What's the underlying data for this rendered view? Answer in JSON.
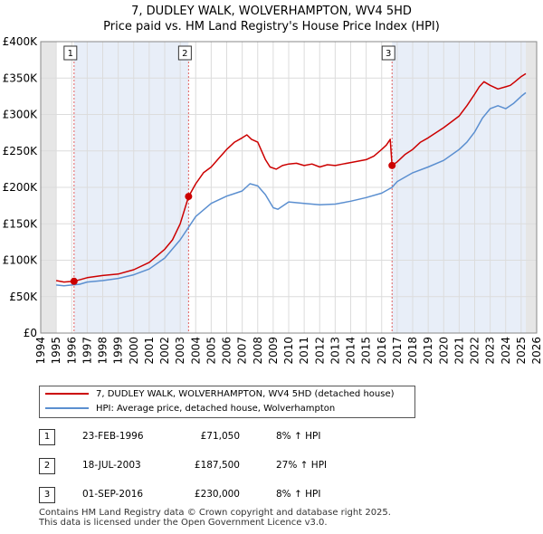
{
  "title_line1": "7, DUDLEY WALK, WOLVERHAMPTON, WV4 5HD",
  "title_line2": "Price paid vs. HM Land Registry's House Price Index (HPI)",
  "chart_data": {
    "type": "line",
    "title": "7, DUDLEY WALK, WOLVERHAMPTON, WV4 5HD — Price paid vs. HM Land Registry's House Price Index (HPI)",
    "xlim": [
      1994,
      2026
    ],
    "ylim": [
      0,
      400000
    ],
    "x_ticks": [
      1994,
      1995,
      1996,
      1997,
      1998,
      1999,
      2000,
      2001,
      2002,
      2003,
      2004,
      2005,
      2006,
      2007,
      2008,
      2009,
      2010,
      2011,
      2012,
      2013,
      2014,
      2015,
      2016,
      2017,
      2018,
      2019,
      2020,
      2021,
      2022,
      2023,
      2024,
      2025,
      2026
    ],
    "y_ticks": [
      0,
      50000,
      100000,
      150000,
      200000,
      250000,
      300000,
      350000,
      400000
    ],
    "y_tick_labels": [
      "£0",
      "£50K",
      "£100K",
      "£150K",
      "£200K",
      "£250K",
      "£300K",
      "£350K",
      "£400K"
    ],
    "data_start": 1995.0,
    "data_end": 2025.3,
    "series": [
      {
        "name": "7, DUDLEY WALK, WOLVERHAMPTON, WV4 5HD (detached house)",
        "color": "#cc0000",
        "x": [
          1995.0,
          1995.5,
          1996.15,
          1996.5,
          1997,
          1998,
          1999,
          2000,
          2001,
          2002,
          2002.5,
          2003.0,
          2003.54,
          2004,
          2004.5,
          2005,
          2005.5,
          2006,
          2006.5,
          2007,
          2007.3,
          2007.6,
          2008,
          2008.5,
          2008.8,
          2009.2,
          2009.6,
          2010,
          2010.5,
          2011,
          2011.5,
          2012,
          2012.5,
          2013,
          2013.5,
          2014,
          2014.5,
          2015,
          2015.5,
          2016,
          2016.3,
          2016.55,
          2016.67,
          2017,
          2017.5,
          2018,
          2018.5,
          2019,
          2019.5,
          2020,
          2020.5,
          2021,
          2021.5,
          2022,
          2022.3,
          2022.6,
          2023,
          2023.5,
          2024,
          2024.3,
          2024.6,
          2025,
          2025.3
        ],
        "values": [
          72000,
          70000,
          71050,
          73000,
          76000,
          79000,
          81000,
          87000,
          97000,
          115000,
          128000,
          150000,
          187500,
          205000,
          220000,
          228000,
          240000,
          252000,
          262000,
          268000,
          272000,
          266000,
          262000,
          238000,
          228000,
          225000,
          230000,
          232000,
          233000,
          230000,
          232000,
          228000,
          231000,
          230000,
          232000,
          234000,
          236000,
          238000,
          243000,
          252000,
          258000,
          266000,
          230000,
          235000,
          245000,
          252000,
          262000,
          268000,
          275000,
          282000,
          290000,
          298000,
          312000,
          328000,
          338000,
          345000,
          340000,
          335000,
          338000,
          340000,
          345000,
          352000,
          356000
        ]
      },
      {
        "name": "HPI: Average price, detached house, Wolverhampton",
        "color": "#5b8fd0",
        "x": [
          1995.0,
          1995.5,
          1996,
          1996.5,
          1997,
          1998,
          1999,
          2000,
          2001,
          2002,
          2003,
          2004,
          2005,
          2006,
          2007,
          2007.5,
          2008,
          2008.5,
          2009,
          2009.3,
          2010,
          2011,
          2012,
          2013,
          2014,
          2015,
          2016,
          2016.67,
          2017,
          2018,
          2019,
          2020,
          2021,
          2021.5,
          2022,
          2022.5,
          2023,
          2023.5,
          2024,
          2024.5,
          2025,
          2025.3
        ],
        "values": [
          66000,
          65000,
          66000,
          67000,
          70000,
          72000,
          75000,
          80000,
          88000,
          103000,
          128000,
          160000,
          178000,
          188000,
          195000,
          205000,
          202000,
          190000,
          172000,
          170000,
          180000,
          178000,
          176000,
          177000,
          181000,
          186000,
          192000,
          200000,
          208000,
          220000,
          228000,
          237000,
          252000,
          262000,
          276000,
          295000,
          308000,
          312000,
          308000,
          315000,
          325000,
          330000
        ]
      }
    ],
    "sales": [
      {
        "id": "1",
        "x": 1996.15,
        "value": 71050
      },
      {
        "id": "2",
        "x": 2003.54,
        "value": 187500
      },
      {
        "id": "3",
        "x": 2016.67,
        "value": 230000
      }
    ]
  },
  "legend": {
    "property": "7, DUDLEY WALK, WOLVERHAMPTON, WV4 5HD (detached house)",
    "hpi": "HPI: Average price, detached house, Wolverhampton"
  },
  "sales_table": [
    {
      "num": "1",
      "date": "23-FEB-1996",
      "price": "£71,050",
      "hpi": "8% ↑ HPI"
    },
    {
      "num": "2",
      "date": "18-JUL-2003",
      "price": "£187,500",
      "hpi": "27% ↑ HPI"
    },
    {
      "num": "3",
      "date": "01-SEP-2016",
      "price": "£230,000",
      "hpi": "8% ↑ HPI"
    }
  ],
  "footer_line1": "Contains HM Land Registry data © Crown copyright and database right 2025.",
  "footer_line2": "This data is licensed under the Open Government Licence v3.0."
}
